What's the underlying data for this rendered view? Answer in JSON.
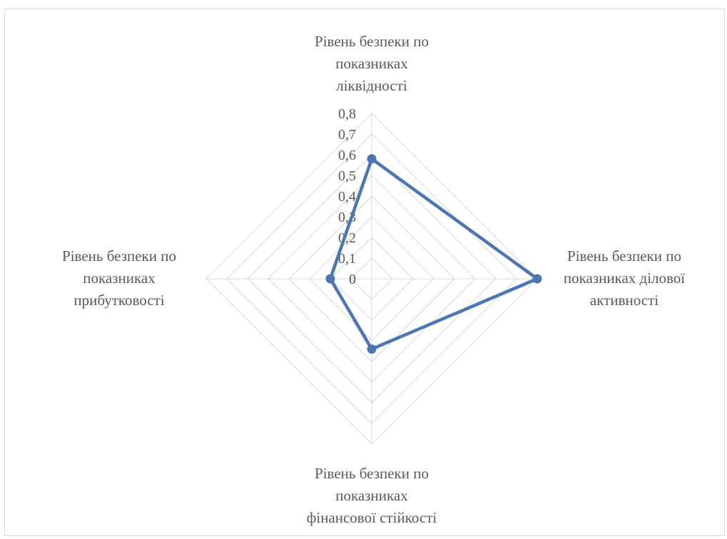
{
  "chart_data": {
    "type": "radar",
    "categories": [
      [
        "Рівень безпеки по",
        "показниках",
        "ліквідності"
      ],
      [
        "Рівень безпеки по",
        "показниках ділової",
        "активності"
      ],
      [
        "Рівень безпеки по",
        "показниках",
        "фінансової стійкості"
      ],
      [
        "Рівень безпеки по",
        "показниках",
        "прибутковості"
      ]
    ],
    "series": [
      {
        "values": [
          0.58,
          0.8,
          0.34,
          0.2
        ]
      }
    ],
    "rlim": [
      0,
      0.8
    ],
    "ticks": [
      "0",
      "0,1",
      "0,2",
      "0,3",
      "0,4",
      "0,5",
      "0,6",
      "0,7",
      "0,8"
    ],
    "grid": true,
    "legend": "none",
    "colors": {
      "series": "#4a77b4",
      "grid": "#d9d9d9",
      "text": "#595959"
    }
  }
}
